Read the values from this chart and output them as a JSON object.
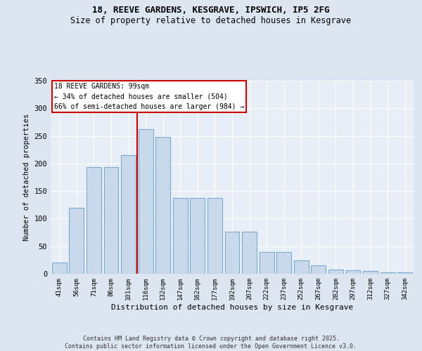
{
  "title_line1": "18, REEVE GARDENS, KESGRAVE, IPSWICH, IP5 2FG",
  "title_line2": "Size of property relative to detached houses in Kesgrave",
  "xlabel": "Distribution of detached houses by size in Kesgrave",
  "ylabel": "Number of detached properties",
  "categories": [
    "41sqm",
    "56sqm",
    "71sqm",
    "86sqm",
    "101sqm",
    "116sqm",
    "132sqm",
    "147sqm",
    "162sqm",
    "177sqm",
    "192sqm",
    "207sqm",
    "222sqm",
    "237sqm",
    "252sqm",
    "267sqm",
    "282sqm",
    "297sqm",
    "312sqm",
    "327sqm",
    "342sqm"
  ],
  "values": [
    20,
    120,
    193,
    193,
    215,
    262,
    248,
    137,
    137,
    137,
    77,
    77,
    39,
    40,
    24,
    15,
    8,
    6,
    5,
    3,
    2
  ],
  "bar_color": "#c9d9eb",
  "bar_edge_color": "#7aaacf",
  "vline_x": 4.5,
  "vline_color": "#cc0000",
  "annotation_text": "18 REEVE GARDENS: 99sqm\n← 34% of detached houses are smaller (504)\n66% of semi-detached houses are larger (984) →",
  "annotation_box_color": "#ffffff",
  "annotation_box_edge": "#cc0000",
  "ylim": [
    0,
    350
  ],
  "yticks": [
    0,
    50,
    100,
    150,
    200,
    250,
    300,
    350
  ],
  "footer": "Contains HM Land Registry data © Crown copyright and database right 2025.\nContains public sector information licensed under the Open Government Licence v3.0.",
  "bg_color": "#dce6f0",
  "plot_bg_color": "#e8eef5",
  "grid_color": "#ffffff",
  "title_fontsize": 9,
  "subtitle_fontsize": 8.5
}
